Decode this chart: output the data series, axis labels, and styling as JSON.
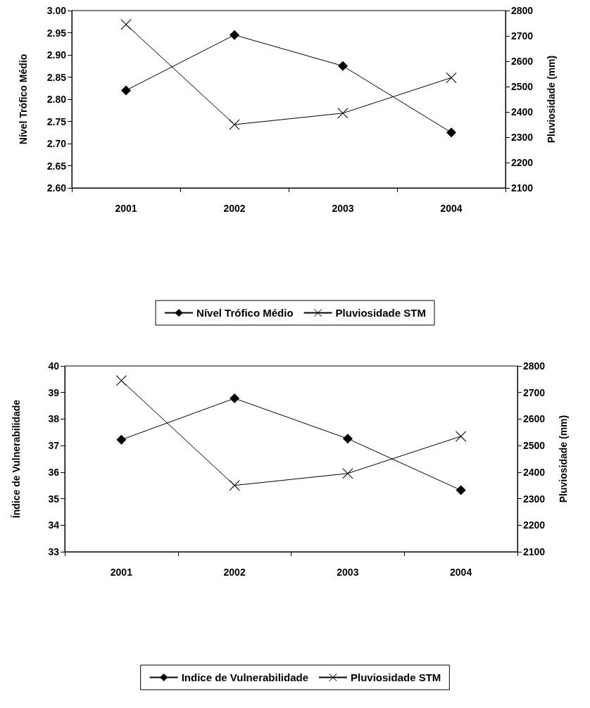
{
  "chart_data": [
    {
      "type": "line",
      "categories": [
        "2001",
        "2002",
        "2003",
        "2004"
      ],
      "ylabel": "Nível Trófico Médio",
      "y2label": "Pluviosidade (mm)",
      "series": [
        {
          "name": "Nível Trófico Médio",
          "color": "#000000",
          "marker": "diamond",
          "values": [
            2.82,
            2.945,
            2.875,
            2.725
          ]
        },
        {
          "name": "Pluviosidade STM",
          "color": "#000000",
          "marker": "cross",
          "axis": "y2",
          "values": [
            2745,
            2350,
            2395,
            2535
          ]
        }
      ],
      "ylim": [
        2.6,
        3.0
      ],
      "yticks": [
        {
          "value": 2.6,
          "label": "2.60"
        },
        {
          "value": 2.65,
          "label": "2.65"
        },
        {
          "value": 2.7,
          "label": "2.70"
        },
        {
          "value": 2.75,
          "label": "2.75"
        },
        {
          "value": 2.8,
          "label": "2.80"
        },
        {
          "value": 2.85,
          "label": "2.85"
        },
        {
          "value": 2.9,
          "label": "2.90"
        },
        {
          "value": 2.95,
          "label": "2.95"
        },
        {
          "value": 3.0,
          "label": "3.00"
        }
      ],
      "y2lim": [
        2100,
        2800
      ],
      "y2ticks": [
        2100,
        2200,
        2300,
        2400,
        2500,
        2600,
        2700,
        2800
      ],
      "grid": false,
      "legend": "bottom"
    },
    {
      "type": "line",
      "categories": [
        "2001",
        "2002",
        "2003",
        "2004"
      ],
      "ylabel": "Índice de Vulnerabilidade",
      "y2label": "Pluviosidade (mm)",
      "series": [
        {
          "name": "Indice de Vulnerabilidade",
          "color": "#000000",
          "marker": "diamond",
          "values": [
            37.22,
            38.78,
            37.26,
            35.32
          ]
        },
        {
          "name": "Pluviosidade STM",
          "color": "#000000",
          "marker": "cross",
          "axis": "y2",
          "values": [
            2745,
            2350,
            2395,
            2535
          ]
        }
      ],
      "ylim": [
        33,
        40
      ],
      "yticks": [
        33,
        34,
        35,
        36,
        37,
        38,
        39,
        40
      ],
      "y2lim": [
        2100,
        2800
      ],
      "y2ticks": [
        2100,
        2200,
        2300,
        2400,
        2500,
        2600,
        2700,
        2800
      ],
      "grid": false,
      "legend": "bottom"
    }
  ]
}
